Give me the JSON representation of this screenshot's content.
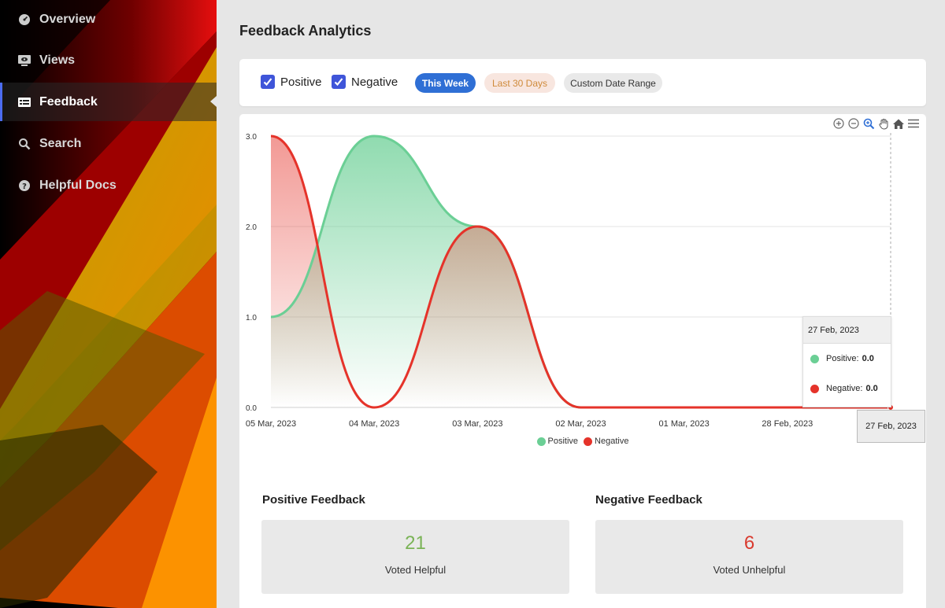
{
  "sidebar": {
    "items": [
      {
        "label": "Overview",
        "icon": "dashboard-icon",
        "active": false
      },
      {
        "label": "Views",
        "icon": "monitor-eye-icon",
        "active": false
      },
      {
        "label": "Feedback",
        "icon": "feedback-list-icon",
        "active": true
      },
      {
        "label": "Search",
        "icon": "search-icon",
        "active": false
      },
      {
        "label": "Helpful Docs",
        "icon": "help-circle-icon",
        "active": false
      }
    ]
  },
  "page": {
    "title": "Feedback Analytics"
  },
  "filters": {
    "positive_label": "Positive",
    "negative_label": "Negative",
    "positive_checked": true,
    "negative_checked": true,
    "this_week": "This Week",
    "last_30": "Last 30 Days",
    "custom_range": "Custom Date Range"
  },
  "colors": {
    "positive": "#6bcf95",
    "negative": "#e5332a",
    "accent": "#2f6fd5",
    "checkbox": "#3f55d9",
    "helpful_number": "#7ab356",
    "unhelpful_number": "#d93a2e"
  },
  "toolbar_icons": [
    "zoom-in-icon",
    "zoom-out-icon",
    "selection-zoom-icon",
    "pan-hand-icon",
    "home-reset-icon",
    "menu-icon"
  ],
  "chart_data": {
    "type": "area",
    "categories": [
      "05 Mar, 2023",
      "04 Mar, 2023",
      "03 Mar, 2023",
      "02 Mar, 2023",
      "01 Mar, 2023",
      "28 Feb, 2023",
      "27 Feb, 2023"
    ],
    "series": [
      {
        "name": "Positive",
        "values": [
          1,
          3,
          2,
          0,
          0,
          0,
          0
        ]
      },
      {
        "name": "Negative",
        "values": [
          3,
          0,
          2,
          0,
          0,
          0,
          0
        ]
      }
    ],
    "y_ticks": [
      "0.0",
      "1.0",
      "2.0",
      "3.0"
    ],
    "ylim": [
      0,
      3
    ],
    "grid": true,
    "legend": "bottom-center",
    "tooltip": {
      "date": "27 Feb, 2023",
      "positive_label": "Positive:",
      "positive_value": "0.0",
      "negative_label": "Negative:",
      "negative_value": "0.0"
    },
    "crosshair_label": "27 Feb, 2023"
  },
  "summary": {
    "positive_title": "Positive Feedback",
    "positive_count": "21",
    "positive_caption": "Voted Helpful",
    "negative_title": "Negative Feedback",
    "negative_count": "6",
    "negative_caption": "Voted Unhelpful"
  }
}
